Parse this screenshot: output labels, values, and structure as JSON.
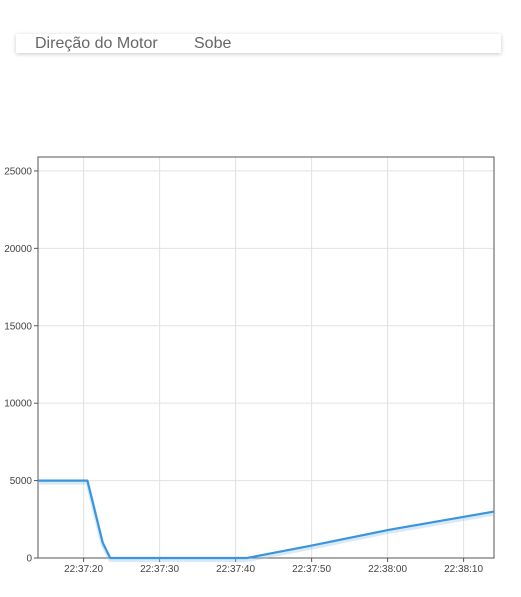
{
  "status": {
    "label": "Direção do Motor",
    "value": "Sobe"
  },
  "chart_data": {
    "type": "line",
    "title": "",
    "xlabel": "",
    "ylabel": "",
    "x_ticks": [
      "22:37:20",
      "22:37:30",
      "22:37:40",
      "22:37:50",
      "22:38:00",
      "22:38:10"
    ],
    "y_ticks": [
      0,
      5000,
      10000,
      15000,
      20000,
      25000
    ],
    "xlim": [
      "22:37:14",
      "22:38:14"
    ],
    "ylim": [
      0,
      25900
    ],
    "grid": true,
    "line_color": "#3a95dd",
    "series": [
      {
        "x": [
          "22:37:14",
          "22:37:20.5",
          "22:37:22.5",
          "22:37:23.5",
          "22:37:28",
          "22:37:35",
          "22:37:41.5",
          "22:37:50",
          "22:38:00",
          "22:38:14"
        ],
        "y": [
          5000,
          5000,
          1000,
          0,
          0,
          0,
          0,
          800,
          1800,
          3000
        ]
      }
    ]
  }
}
